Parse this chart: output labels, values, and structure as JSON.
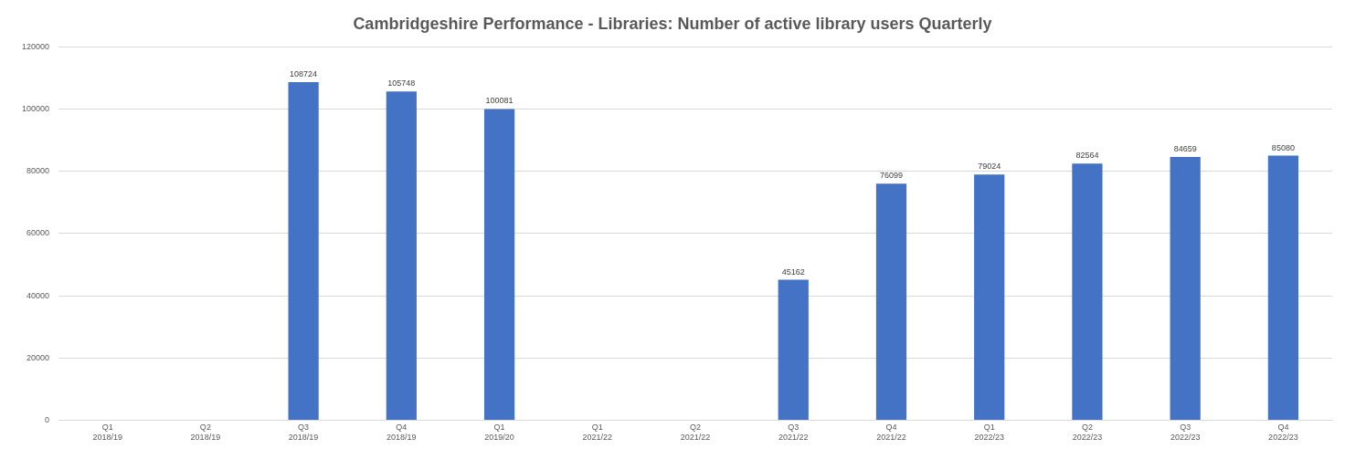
{
  "chart_data": {
    "type": "bar",
    "title": "Cambridgeshire Performance - Libraries: Number of active library users Quarterly",
    "categories": [
      "Q1 2018/19",
      "Q2 2018/19",
      "Q3 2018/19",
      "Q4 2018/19",
      "Q1 2019/20",
      "Q1 2021/22",
      "Q2 2021/22",
      "Q3 2021/22",
      "Q4 2021/22",
      "Q1 2022/23",
      "Q2 2022/23",
      "Q3 2022/23",
      "Q4 2022/23"
    ],
    "values": [
      null,
      null,
      108724,
      105748,
      100081,
      null,
      null,
      45162,
      76099,
      79024,
      82564,
      84659,
      85080
    ],
    "color": "#4472c4",
    "ylim": [
      0,
      120000
    ],
    "yticks": [
      0,
      20000,
      40000,
      60000,
      80000,
      100000,
      120000
    ],
    "grid": "y",
    "data_labels": true,
    "legend": false
  }
}
